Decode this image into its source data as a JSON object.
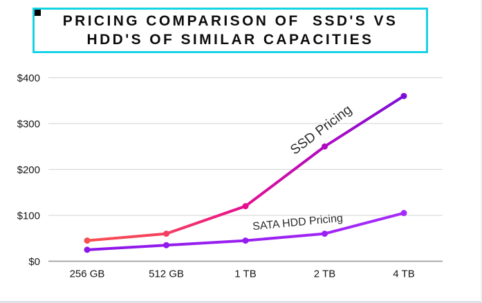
{
  "title": {
    "text_line1": "PRICING COMPARISON OF  SSD'S VS",
    "text_line2": "HDD'S OF SIMILAR CAPACITIES",
    "border_color": "#16d2e5",
    "corner_square_color": "#000000",
    "text_color": "#0d0d0d"
  },
  "chart_data": {
    "type": "line",
    "title": "Pricing comparison of SSD's vs HDD's of similar capacities",
    "categories": [
      "256 GB",
      "512 GB",
      "1 TB",
      "2 TB",
      "4 TB"
    ],
    "series": [
      {
        "name": "SSD Pricing",
        "values": [
          45,
          60,
          120,
          250,
          360
        ],
        "point_colors": [
          "#f85050",
          "#f53e60",
          "#e60e90",
          "#b00bc0",
          "#7c0ed8"
        ],
        "gradient": [
          [
            0,
            "#f85050"
          ],
          [
            0.25,
            "#f53e60"
          ],
          [
            0.5,
            "#e60e90"
          ],
          [
            0.74,
            "#b00bc0"
          ],
          [
            1,
            "#7c0ed8"
          ]
        ]
      },
      {
        "name": "SATA  HDD Pricing",
        "values": [
          25,
          35,
          45,
          60,
          105
        ],
        "point_colors": [
          "#8c16e9",
          "#9119ec",
          "#951bef",
          "#9c20f3",
          "#a62bfa"
        ],
        "gradient": [
          [
            0,
            "#8c16e9"
          ],
          [
            1,
            "#a62bfa"
          ]
        ]
      }
    ],
    "xlabel": "",
    "ylabel": "",
    "y_ticks": [
      "$0",
      "$100",
      "$200",
      "$300",
      "$400"
    ],
    "y_tick_values": [
      0,
      100,
      200,
      300,
      400
    ],
    "ylim": [
      0,
      400
    ],
    "grid": true,
    "legend": "inline-rotated-labels",
    "axis_text_color": "#141414",
    "gridline_color": "#d9d9d9",
    "baseline_color": "#a8a8a8"
  }
}
